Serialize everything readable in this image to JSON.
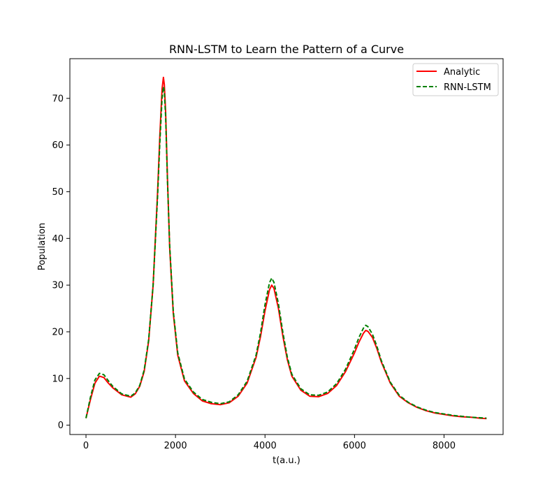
{
  "chart_data": {
    "type": "line",
    "title": "RNN-LSTM to Learn the Pattern of a Curve",
    "xlabel": "t(a.u.)",
    "ylabel": "Population",
    "xlim": [
      -360,
      9320
    ],
    "ylim": [
      -2,
      78.5
    ],
    "xticks": [
      0,
      2000,
      4000,
      6000,
      8000
    ],
    "yticks": [
      0,
      10,
      20,
      30,
      40,
      50,
      60,
      70
    ],
    "grid": false,
    "legend_position": "top-right",
    "series": [
      {
        "name": "Analytic",
        "color": "#ff0000",
        "style": "solid",
        "x": [
          0,
          100,
          200,
          300,
          400,
          500,
          600,
          800,
          1000,
          1100,
          1200,
          1300,
          1400,
          1500,
          1600,
          1650,
          1700,
          1730,
          1750,
          1780,
          1820,
          1870,
          1950,
          2050,
          2200,
          2400,
          2600,
          2800,
          3000,
          3200,
          3400,
          3600,
          3800,
          3900,
          4000,
          4100,
          4150,
          4200,
          4300,
          4400,
          4500,
          4600,
          4800,
          5000,
          5200,
          5400,
          5600,
          5800,
          6000,
          6100,
          6200,
          6250,
          6300,
          6400,
          6500,
          6600,
          6800,
          7000,
          7200,
          7400,
          7600,
          7800,
          8000,
          8200,
          8400,
          8600,
          8800,
          8950
        ],
        "y": [
          1.5,
          5.5,
          9.0,
          10.5,
          10.2,
          9.0,
          8.0,
          6.5,
          6.0,
          6.7,
          8.3,
          11.5,
          18.0,
          30.0,
          50.0,
          62.0,
          72.0,
          74.5,
          73.0,
          67.0,
          53.0,
          38.0,
          24.0,
          15.0,
          9.5,
          6.8,
          5.2,
          4.6,
          4.4,
          4.8,
          6.2,
          9.0,
          14.5,
          19.0,
          24.5,
          29.0,
          30.0,
          29.3,
          25.0,
          19.0,
          14.0,
          10.5,
          7.5,
          6.2,
          6.1,
          6.8,
          8.5,
          11.5,
          15.5,
          17.8,
          19.7,
          20.3,
          20.1,
          18.8,
          16.4,
          13.5,
          9.0,
          6.2,
          4.8,
          3.8,
          3.1,
          2.6,
          2.3,
          2.0,
          1.8,
          1.7,
          1.5,
          1.4
        ]
      },
      {
        "name": "RNN-LSTM",
        "color": "#008000",
        "style": "dashed",
        "x": [
          0,
          100,
          200,
          300,
          400,
          500,
          600,
          800,
          1000,
          1100,
          1200,
          1300,
          1400,
          1500,
          1600,
          1650,
          1700,
          1730,
          1750,
          1780,
          1820,
          1870,
          1950,
          2050,
          2200,
          2400,
          2600,
          2800,
          3000,
          3200,
          3400,
          3600,
          3800,
          3900,
          4000,
          4100,
          4150,
          4200,
          4300,
          4400,
          4500,
          4600,
          4800,
          5000,
          5200,
          5400,
          5600,
          5800,
          6000,
          6100,
          6200,
          6250,
          6300,
          6400,
          6500,
          6600,
          6800,
          7000,
          7200,
          7400,
          7600,
          7800,
          8000,
          8200,
          8400,
          8600,
          8800,
          8950
        ],
        "y": [
          1.5,
          6.0,
          9.7,
          11.1,
          10.8,
          9.5,
          8.3,
          6.7,
          6.2,
          6.9,
          8.5,
          11.8,
          18.3,
          30.0,
          49.0,
          60.5,
          70.0,
          72.5,
          71.5,
          66.0,
          52.5,
          38.5,
          24.5,
          15.5,
          9.9,
          7.1,
          5.5,
          4.9,
          4.6,
          5.0,
          6.5,
          9.4,
          15.0,
          19.8,
          25.8,
          30.5,
          31.5,
          30.6,
          26.0,
          19.8,
          14.5,
          10.9,
          7.8,
          6.5,
          6.4,
          7.1,
          8.9,
          12.0,
          16.3,
          18.8,
          20.8,
          21.4,
          21.1,
          19.5,
          16.9,
          13.8,
          9.2,
          6.4,
          4.9,
          3.9,
          3.2,
          2.7,
          2.4,
          2.1,
          1.9,
          1.7,
          1.6,
          1.5
        ]
      }
    ]
  }
}
